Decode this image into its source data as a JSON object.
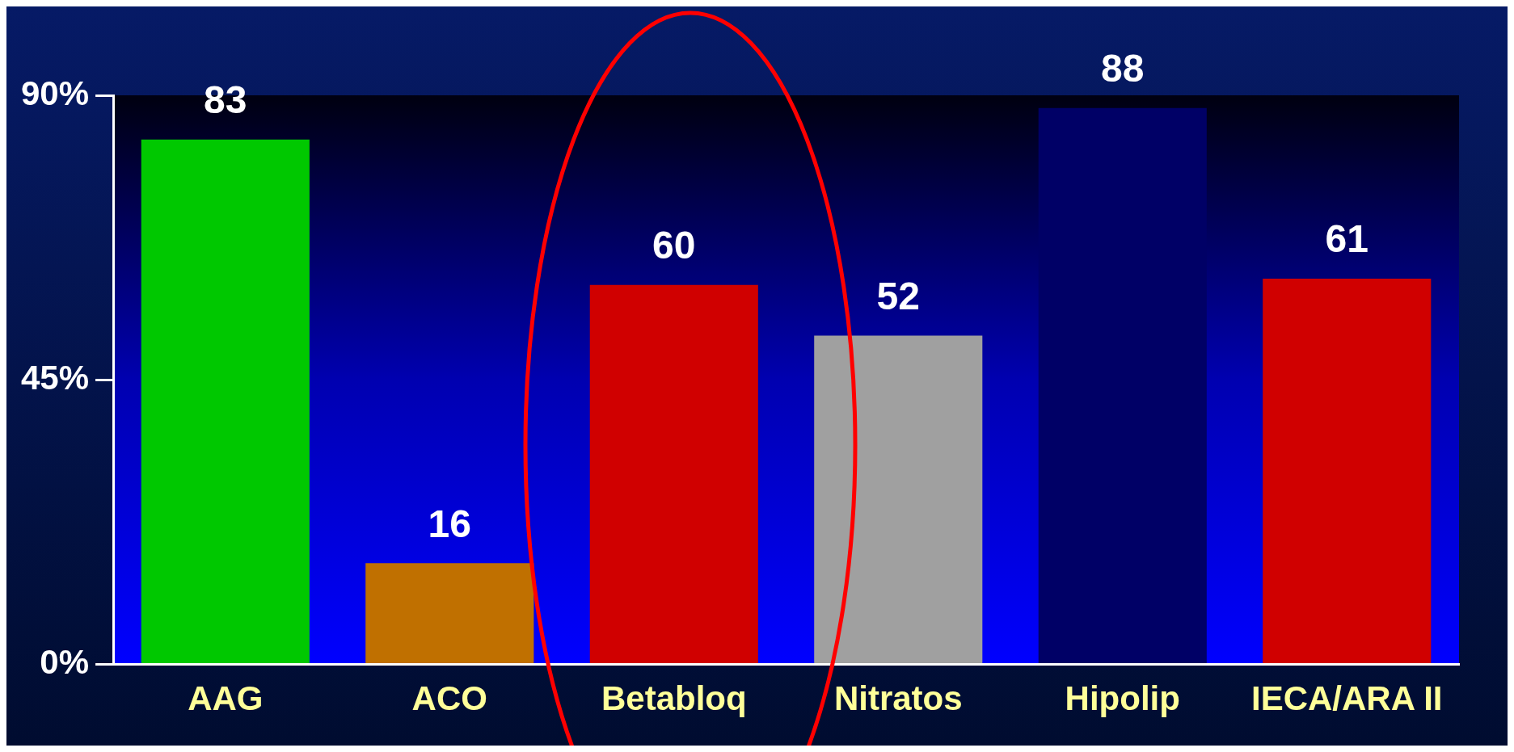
{
  "chart_data": {
    "type": "bar",
    "categories": [
      "AAG",
      "ACO",
      "Betabloq",
      "Nitratos",
      "Hipolip",
      "IECA/ARA II"
    ],
    "values": [
      83,
      16,
      60,
      52,
      88,
      61
    ],
    "colors": [
      "#00c800",
      "#c07000",
      "#d00000",
      "#a0a0a0",
      "#000066",
      "#d00000"
    ],
    "data_labels": true,
    "ylim": [
      0,
      90
    ],
    "yticks": [
      {
        "value": 0,
        "label": "0%"
      },
      {
        "value": 45,
        "label": "45%"
      },
      {
        "value": 90,
        "label": "90%"
      }
    ],
    "grid": false,
    "legend": false
  }
}
